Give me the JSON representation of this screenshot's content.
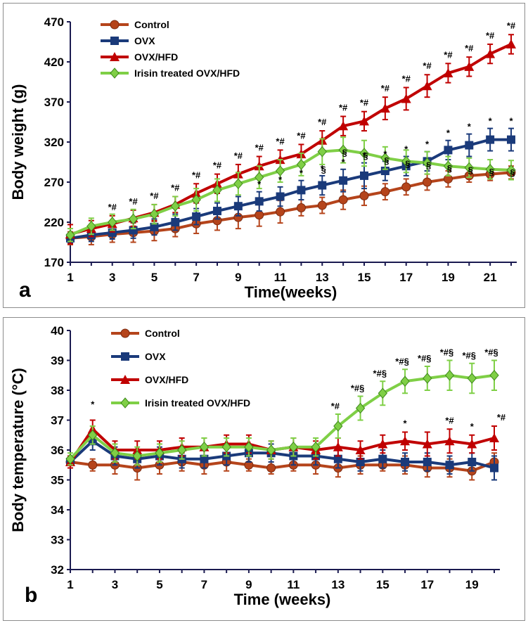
{
  "figure": {
    "legend_items": [
      {
        "label": "Control",
        "color": "#b5441b",
        "marker": "circle"
      },
      {
        "label": "OVX",
        "color": "#1a3a7a",
        "marker": "square"
      },
      {
        "label": "OVX/HFD",
        "color": "#c00000",
        "marker": "triangle"
      },
      {
        "label": "Irisin treated OVX/HFD",
        "color": "#7fcf46",
        "marker": "diamond"
      }
    ]
  },
  "chart_data": [
    {
      "type": "line",
      "panel_label": "a",
      "title": "",
      "xlabel": "Time(weeks)",
      "ylabel": "Body weight (g)",
      "xlim": [
        1,
        22
      ],
      "ylim": [
        170,
        470
      ],
      "x_ticks": [
        "1",
        "3",
        "5",
        "7",
        "9",
        "11",
        "13",
        "15",
        "17",
        "19",
        "21"
      ],
      "y_ticks": [
        "170",
        "220",
        "270",
        "320",
        "370",
        "420",
        "470"
      ],
      "x": [
        1,
        2,
        3,
        4,
        5,
        6,
        7,
        8,
        9,
        10,
        11,
        12,
        13,
        14,
        15,
        16,
        17,
        18,
        19,
        20,
        21,
        22
      ],
      "legend_position": "top-left",
      "series": [
        {
          "name": "Control",
          "color": "#b5441b",
          "values": [
            200,
            202,
            205,
            207,
            209,
            212,
            218,
            222,
            226,
            229,
            233,
            238,
            241,
            248,
            253,
            258,
            264,
            270,
            274,
            278,
            280,
            282
          ],
          "errors": [
            8,
            10,
            10,
            12,
            12,
            10,
            12,
            12,
            14,
            14,
            14,
            10,
            10,
            12,
            12,
            10,
            10,
            10,
            10,
            8,
            8,
            8
          ]
        },
        {
          "name": "OVX",
          "color": "#1a3a7a",
          "values": [
            200,
            204,
            207,
            210,
            214,
            220,
            227,
            234,
            240,
            246,
            252,
            260,
            266,
            272,
            278,
            284,
            290,
            296,
            310,
            316,
            323,
            323
          ],
          "errors": [
            6,
            8,
            8,
            10,
            10,
            10,
            10,
            10,
            12,
            12,
            12,
            12,
            12,
            14,
            16,
            12,
            12,
            12,
            12,
            14,
            14,
            14
          ]
        },
        {
          "name": "OVX/HFD",
          "color": "#c00000",
          "values": [
            205,
            212,
            218,
            225,
            232,
            242,
            256,
            268,
            280,
            290,
            298,
            305,
            322,
            340,
            346,
            362,
            374,
            390,
            406,
            414,
            430,
            442
          ],
          "errors": [
            12,
            10,
            10,
            10,
            10,
            10,
            12,
            12,
            12,
            12,
            12,
            12,
            12,
            12,
            12,
            14,
            14,
            14,
            12,
            12,
            12,
            12
          ],
          "annotations": [
            "",
            "",
            "*#",
            "*#",
            "*#",
            "*#",
            "*#",
            "*#",
            "*#",
            "*#",
            "*#",
            "*#",
            "*#",
            "*#",
            "*#",
            "*#",
            "*#",
            "*#",
            "*#",
            "*#",
            "*#",
            "*#"
          ]
        },
        {
          "name": "Irisin treated OVX/HFD",
          "color": "#7fcf46",
          "values": [
            204,
            215,
            220,
            224,
            230,
            240,
            248,
            260,
            268,
            276,
            284,
            292,
            308,
            310,
            306,
            300,
            296,
            294,
            290,
            288,
            286,
            285
          ],
          "errors": [
            8,
            10,
            10,
            12,
            12,
            12,
            14,
            14,
            14,
            14,
            14,
            14,
            16,
            16,
            16,
            14,
            14,
            14,
            12,
            12,
            12,
            12
          ]
        }
      ],
      "ovx_annotations": [
        "",
        "",
        "",
        "",
        "",
        "",
        "",
        "",
        "",
        "*",
        "*",
        "*",
        "*",
        "*",
        "*",
        "*",
        "*",
        "*",
        "*",
        "*",
        "*",
        "*"
      ],
      "irisin_annotations": [
        "",
        "",
        "",
        "",
        "",
        "",
        "",
        "",
        "",
        "",
        "",
        "",
        "§",
        "§",
        "§",
        "§",
        "§",
        "§",
        "§",
        "§",
        "§",
        "§"
      ]
    },
    {
      "type": "line",
      "panel_label": "b",
      "title": "",
      "xlabel": "Time (weeks)",
      "ylabel": "Body temperature (°C)",
      "xlim": [
        1,
        20
      ],
      "ylim": [
        32,
        40
      ],
      "x_ticks": [
        "1",
        "3",
        "5",
        "7",
        "9",
        "11",
        "13",
        "15",
        "17",
        "19"
      ],
      "y_ticks": [
        "32",
        "33",
        "34",
        "35",
        "36",
        "37",
        "38",
        "39",
        "40"
      ],
      "x": [
        1,
        2,
        3,
        4,
        5,
        6,
        7,
        8,
        9,
        10,
        11,
        12,
        13,
        14,
        15,
        16,
        17,
        18,
        19,
        20
      ],
      "legend_position": "top-left",
      "series": [
        {
          "name": "Control",
          "color": "#b5441b",
          "values": [
            35.6,
            35.5,
            35.5,
            35.4,
            35.5,
            35.6,
            35.5,
            35.6,
            35.5,
            35.4,
            35.5,
            35.5,
            35.4,
            35.5,
            35.5,
            35.5,
            35.4,
            35.4,
            35.3,
            35.6
          ],
          "errors": [
            0.2,
            0.2,
            0.3,
            0.4,
            0.3,
            0.3,
            0.3,
            0.3,
            0.2,
            0.2,
            0.2,
            0.3,
            0.3,
            0.3,
            0.2,
            0.3,
            0.3,
            0.3,
            0.3,
            0.3
          ]
        },
        {
          "name": "OVX",
          "color": "#1a3a7a",
          "values": [
            35.6,
            36.3,
            35.8,
            35.7,
            35.8,
            35.7,
            35.7,
            35.8,
            35.9,
            35.9,
            35.8,
            35.8,
            35.7,
            35.6,
            35.7,
            35.6,
            35.6,
            35.5,
            35.6,
            35.4
          ],
          "errors": [
            0.2,
            0.3,
            0.3,
            0.3,
            0.3,
            0.3,
            0.3,
            0.3,
            0.3,
            0.3,
            0.3,
            0.3,
            0.3,
            0.3,
            0.3,
            0.3,
            0.3,
            0.3,
            0.3,
            0.4
          ]
        },
        {
          "name": "OVX/HFD",
          "color": "#c00000",
          "values": [
            35.6,
            36.7,
            36.0,
            36.0,
            36.0,
            36.1,
            36.1,
            36.2,
            36.2,
            36.0,
            36.1,
            36.0,
            36.1,
            36.0,
            36.2,
            36.3,
            36.2,
            36.3,
            36.2,
            36.4
          ],
          "errors": [
            0.2,
            0.3,
            0.3,
            0.3,
            0.3,
            0.3,
            0.3,
            0.3,
            0.3,
            0.3,
            0.3,
            0.3,
            0.3,
            0.3,
            0.3,
            0.3,
            0.4,
            0.4,
            0.3,
            0.4
          ],
          "annotations": [
            "",
            "*",
            "",
            "",
            "",
            "",
            "",
            "",
            "",
            "",
            "",
            "",
            "",
            "",
            "",
            "*",
            "",
            "*#",
            "*",
            "*#"
          ]
        },
        {
          "name": "Irisin treated OVX/HFD",
          "color": "#7fcf46",
          "values": [
            35.7,
            36.5,
            35.9,
            35.8,
            35.9,
            36.0,
            36.1,
            36.1,
            36.1,
            36.0,
            36.1,
            36.1,
            36.8,
            37.4,
            37.9,
            38.3,
            38.4,
            38.5,
            38.4,
            38.5
          ],
          "errors": [
            0.2,
            0.3,
            0.3,
            0.3,
            0.3,
            0.3,
            0.3,
            0.3,
            0.3,
            0.3,
            0.3,
            0.3,
            0.4,
            0.4,
            0.4,
            0.4,
            0.4,
            0.5,
            0.5,
            0.5
          ],
          "annotations": [
            "",
            "",
            "",
            "",
            "",
            "",
            "",
            "",
            "",
            "",
            "",
            "",
            "*#",
            "*#§",
            "*#§",
            "*#§",
            "*#§",
            "*#§",
            "*#§",
            "*#§"
          ]
        }
      ]
    }
  ]
}
